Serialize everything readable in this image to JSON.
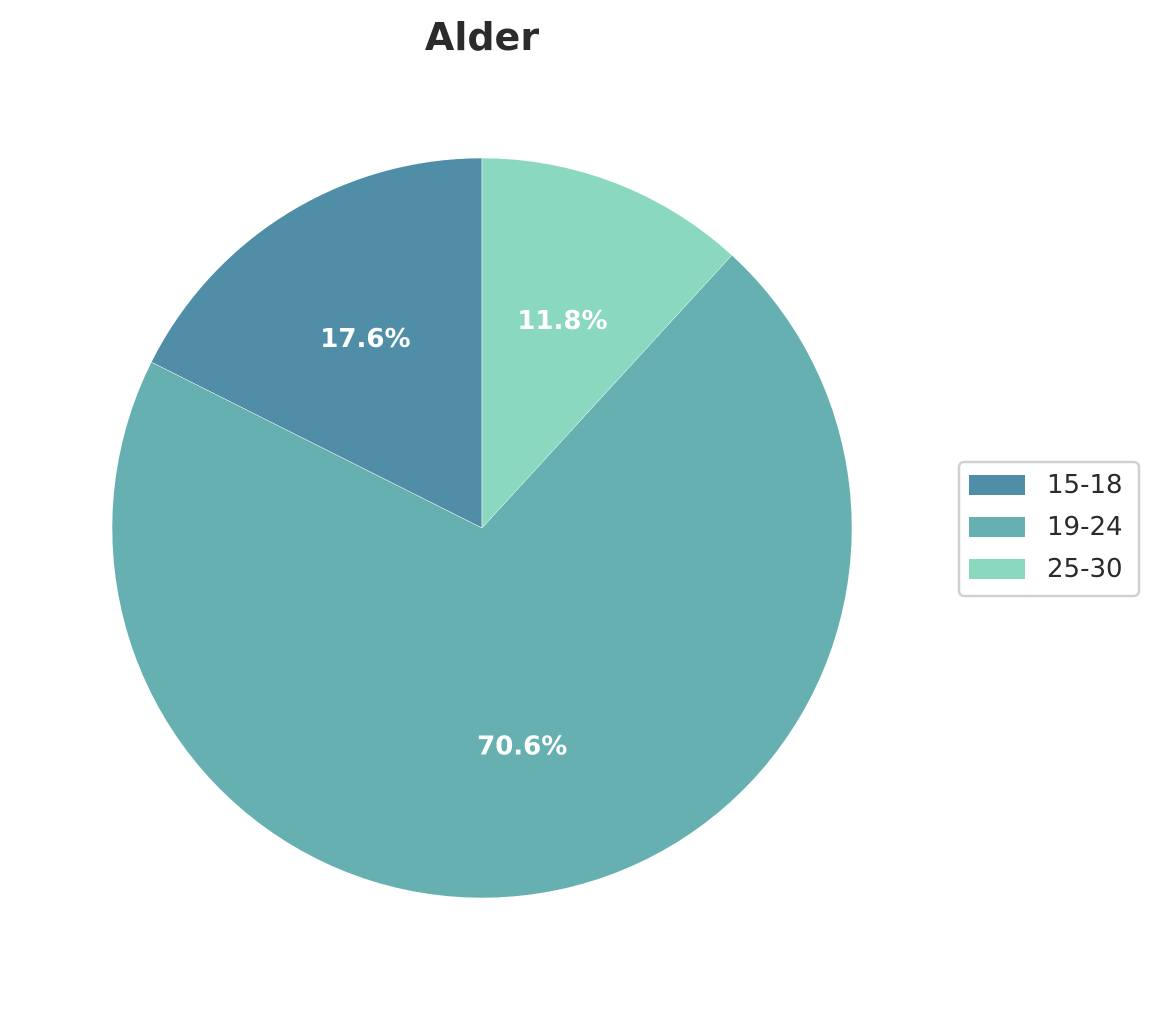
{
  "chart_data": {
    "type": "pie",
    "title": "Alder",
    "categories": [
      "15-18",
      "19-24",
      "25-30"
    ],
    "values": [
      17.6,
      70.6,
      11.8
    ],
    "labels": [
      "17.6%",
      "70.6%",
      "11.8%"
    ],
    "colors": [
      "#4f8ea6",
      "#67b0b1",
      "#8ad8bf"
    ],
    "start_angle_deg": 90,
    "direction": "counterclockwise",
    "legend": {
      "placement": "right",
      "entries": [
        "15-18",
        "19-24",
        "25-30"
      ]
    }
  }
}
